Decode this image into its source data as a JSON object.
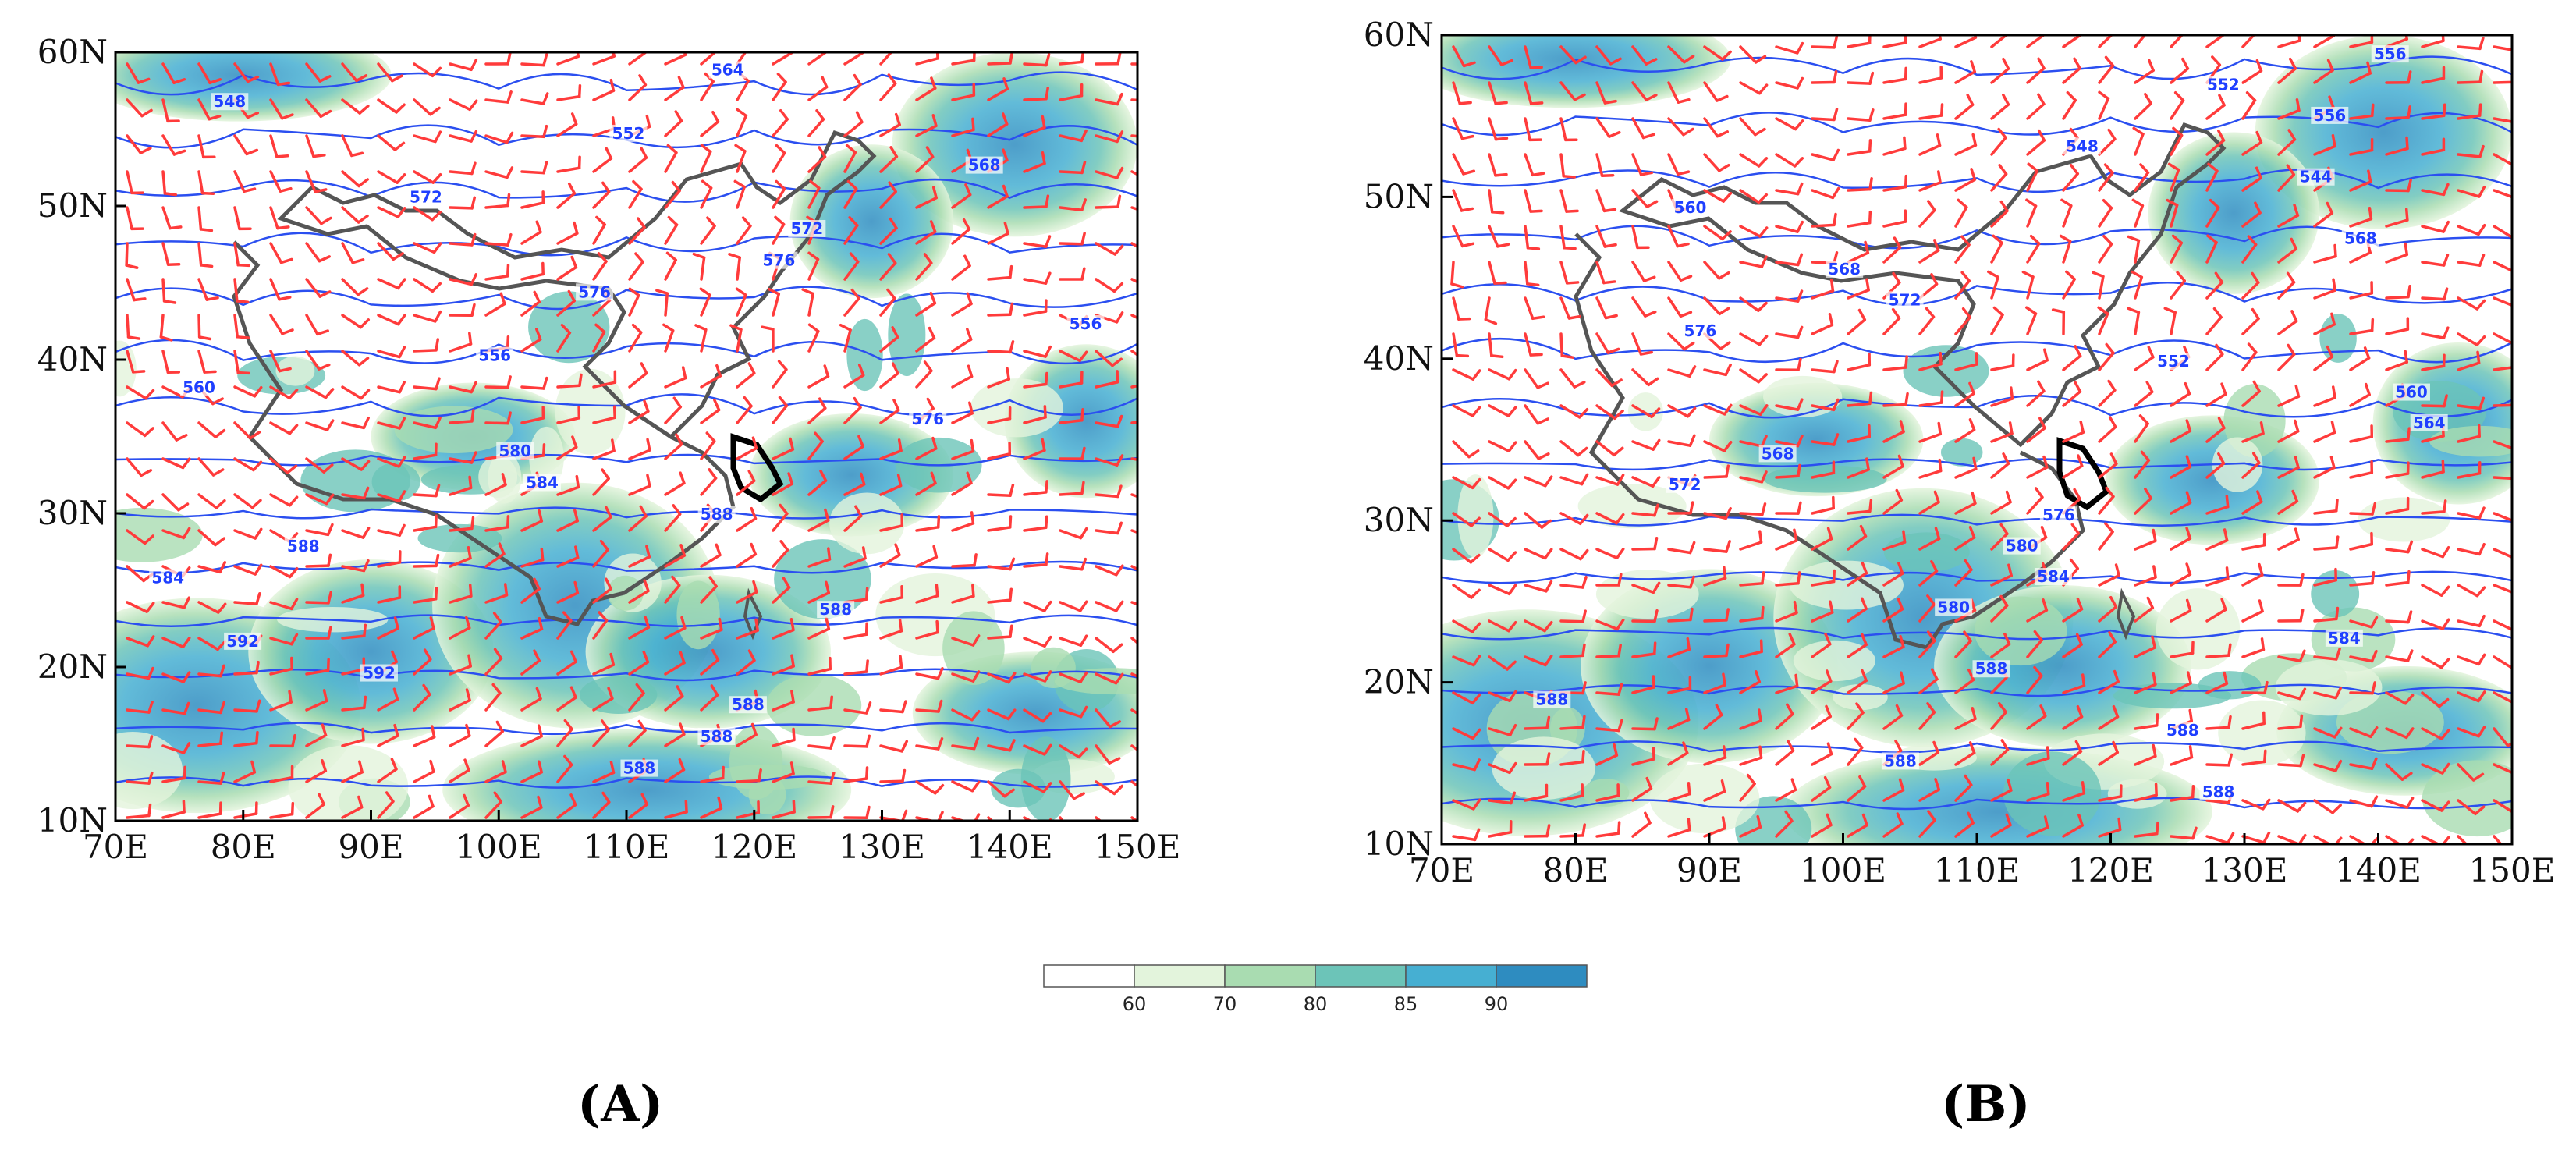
{
  "panels": [
    {
      "id": "A",
      "label": "(A)",
      "x_ticks": [
        "70E",
        "80E",
        "90E",
        "100E",
        "110E",
        "120E",
        "130E",
        "140E",
        "150E"
      ],
      "y_ticks": [
        "60N",
        "50N",
        "40N",
        "30N",
        "20N",
        "10N"
      ],
      "contour_labels": [
        "564",
        "548",
        "552",
        "568",
        "572",
        "572",
        "576",
        "576",
        "556",
        "556",
        "560",
        "576",
        "580",
        "584",
        "588",
        "588",
        "584",
        "588",
        "592",
        "592",
        "588",
        "588",
        "588"
      ]
    },
    {
      "id": "B",
      "label": "(B)",
      "x_ticks": [
        "70E",
        "80E",
        "90E",
        "100E",
        "110E",
        "120E",
        "130E",
        "140E",
        "150E"
      ],
      "y_ticks": [
        "60N",
        "50N",
        "40N",
        "30N",
        "20N",
        "10N"
      ],
      "contour_labels": [
        "556",
        "552",
        "556",
        "548",
        "544",
        "560",
        "568",
        "568",
        "572",
        "576",
        "552",
        "560",
        "564",
        "568",
        "572",
        "576",
        "580",
        "584",
        "580",
        "584",
        "588",
        "588",
        "588",
        "588",
        "588"
      ]
    }
  ],
  "colorbar": {
    "labels": [
      "60",
      "70",
      "80",
      "85",
      "90"
    ],
    "colors": [
      "#ffffff",
      "#e3f4dc",
      "#a9dcb1",
      "#6cc4b8",
      "#46afd2",
      "#2e8cc0"
    ]
  },
  "colors": {
    "wind_barb": "#ff3b3b",
    "contour": "#2b4ff0",
    "border": "#555555"
  }
}
